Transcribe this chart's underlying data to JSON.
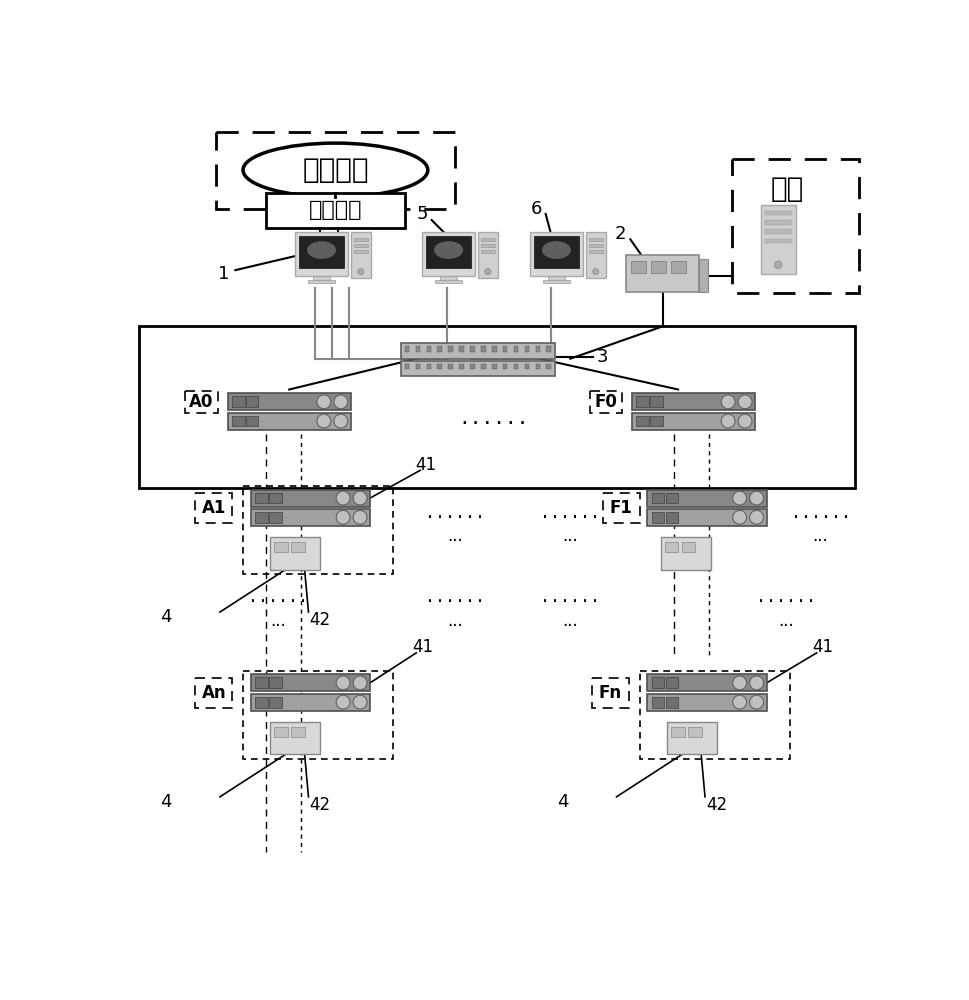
{
  "bg_color": "#ffffff",
  "ellipse_text": "第一指令",
  "box_text": "纵向加密",
  "bus_label": "母线",
  "label_1": "1",
  "label_2": "2",
  "label_3": "3",
  "label_4": "4",
  "label_5": "5",
  "label_6": "6",
  "label_41": "41",
  "label_42": "42",
  "nodes_A0": "A0",
  "nodes_F0": "F0",
  "nodes_A1": "A1",
  "nodes_F1": "F1",
  "nodes_An": "An",
  "nodes_Fn": "Fn",
  "dots6": "......",
  "dots3": "..."
}
